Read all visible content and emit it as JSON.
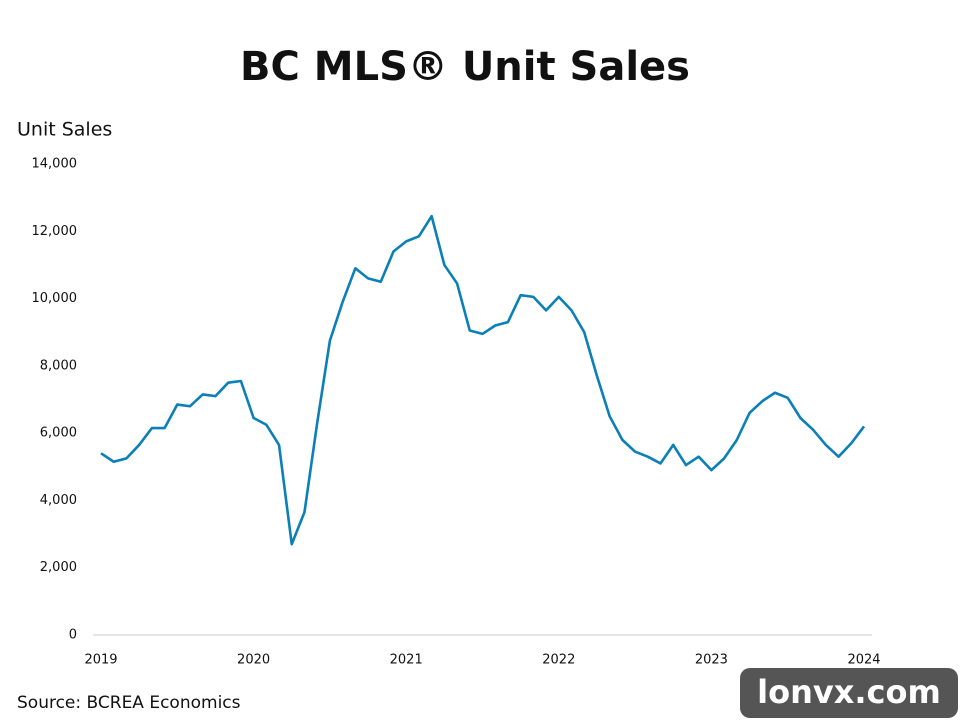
{
  "chart_data": {
    "type": "line",
    "title": "BC MLS® Unit Sales",
    "y_label": "Unit Sales",
    "source": "Source: BCREA Economics",
    "watermark": "lonvx.com",
    "categories": [
      "2019",
      null,
      null,
      null,
      null,
      null,
      null,
      null,
      null,
      null,
      null,
      null,
      "2020",
      null,
      null,
      null,
      null,
      null,
      null,
      null,
      null,
      null,
      null,
      null,
      "2021",
      null,
      null,
      null,
      null,
      null,
      null,
      null,
      null,
      null,
      null,
      null,
      "2022",
      null,
      null,
      null,
      null,
      null,
      null,
      null,
      null,
      null,
      null,
      null,
      "2023",
      null,
      null,
      null,
      null,
      null,
      null,
      null,
      null,
      null,
      null,
      null,
      "2024"
    ],
    "series": [
      {
        "name": "Unit Sales",
        "color": "#0a7fb8",
        "values": [
          5400,
          5150,
          5250,
          5650,
          6150,
          6150,
          6850,
          6800,
          7150,
          7100,
          7500,
          7550,
          6450,
          6250,
          5650,
          2700,
          3650,
          6300,
          8750,
          9900,
          10900,
          10600,
          10500,
          11400,
          11700,
          11850,
          12450,
          11000,
          10450,
          9050,
          8950,
          9200,
          9300,
          10100,
          10050,
          9650,
          10050,
          9650,
          9000,
          7700,
          6500,
          5800,
          5450,
          5300,
          5100,
          5650,
          5050,
          5300,
          4900,
          5250,
          5800,
          6600,
          6950,
          7200,
          7050,
          6450,
          6100,
          5650,
          5300,
          5700,
          6200
        ]
      }
    ],
    "ylim": [
      0,
      14000
    ],
    "yticks": [
      0,
      {
        "value": 2000,
        "label": "2,000"
      },
      {
        "value": 4000,
        "label": "4,000"
      },
      {
        "value": 6000,
        "label": "6,000"
      },
      {
        "value": 8000,
        "label": "8,000"
      },
      {
        "value": 10000,
        "label": "10,000"
      },
      {
        "value": 12000,
        "label": "12,000"
      },
      {
        "value": 14000,
        "label": "14,000"
      }
    ],
    "grid": false
  }
}
